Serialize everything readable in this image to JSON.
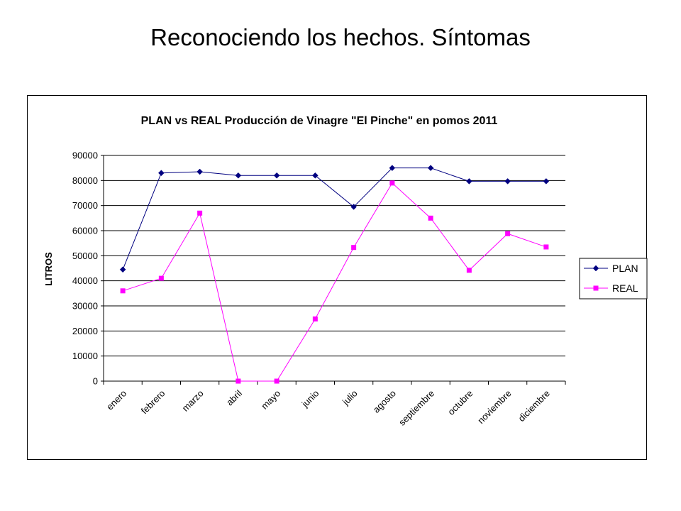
{
  "slide": {
    "title": "Reconociendo los hechos. Síntomas"
  },
  "chart_data": {
    "type": "line",
    "title": "PLAN vs REAL Producción de Vinagre \"El Pinche\" en pomos 2011",
    "xlabel": "",
    "ylabel": "LITROS",
    "ylim": [
      0,
      90000
    ],
    "yticks": [
      0,
      10000,
      20000,
      30000,
      40000,
      50000,
      60000,
      70000,
      80000,
      90000
    ],
    "grid": true,
    "legend_position": "right",
    "categories": [
      "enero",
      "febrero",
      "marzo",
      "abril",
      "mayo",
      "junio",
      "julio",
      "agosto",
      "septiembre",
      "octubre",
      "noviembre",
      "diciembre"
    ],
    "series": [
      {
        "name": "PLAN",
        "color": "#000080",
        "marker": "diamond",
        "values": [
          44500,
          83000,
          83500,
          82000,
          82000,
          82000,
          69500,
          85000,
          85000,
          79700,
          79700,
          79700
        ]
      },
      {
        "name": "REAL",
        "color": "#FF00FF",
        "marker": "square",
        "values": [
          36000,
          41000,
          67000,
          0,
          0,
          24800,
          53300,
          79000,
          65000,
          44200,
          58800,
          53500
        ]
      }
    ]
  }
}
